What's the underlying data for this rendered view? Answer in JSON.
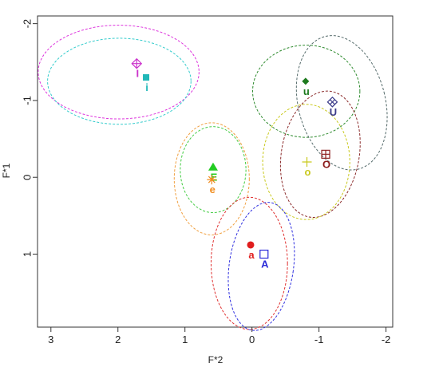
{
  "chart_data": {
    "type": "scatter",
    "title": "",
    "xlabel": "F*2",
    "ylabel": "F*1",
    "xlim": [
      3.2,
      -2.1
    ],
    "ylim": [
      -2.1,
      1.95
    ],
    "x_ticks": [
      3,
      2,
      1,
      0,
      -1,
      -2
    ],
    "y_ticks": [
      -2,
      -1,
      0,
      1
    ],
    "x_tick_labels": [
      "3",
      "2",
      "1",
      "0",
      "-1",
      "-2"
    ],
    "y_tick_labels": [
      "-2",
      "-1",
      "0",
      "1"
    ],
    "grid": false,
    "legend": "none",
    "points": [
      {
        "label": "I",
        "x": 1.72,
        "y": -1.48,
        "color": "#cc33cc",
        "marker": "diamond-plus"
      },
      {
        "label": "i",
        "x": 1.58,
        "y": -1.3,
        "color": "#20b8b8",
        "marker": "square-filled"
      },
      {
        "label": "u",
        "x": -0.8,
        "y": -1.25,
        "color": "#1e7a1e",
        "marker": "diamond-filled"
      },
      {
        "label": "U",
        "x": -1.2,
        "y": -0.98,
        "color": "#3b3b8a",
        "marker": "diamond-x"
      },
      {
        "label": "O",
        "x": -1.1,
        "y": -0.3,
        "color": "#8b1a1a",
        "marker": "square-plus"
      },
      {
        "label": "o",
        "x": -0.82,
        "y": -0.2,
        "color": "#c9c91e",
        "marker": "plus"
      },
      {
        "label": "E",
        "x": 0.58,
        "y": -0.13,
        "color": "#22cc22",
        "marker": "triangle-filled"
      },
      {
        "label": "e",
        "x": 0.6,
        "y": 0.03,
        "color": "#f08c1e",
        "marker": "asterisk"
      },
      {
        "label": "a",
        "x": 0.02,
        "y": 0.88,
        "color": "#e01e1e",
        "marker": "circle-filled"
      },
      {
        "label": "A",
        "x": -0.18,
        "y": 1.0,
        "color": "#2a2ad8",
        "marker": "square-open"
      }
    ],
    "ellipses": [
      {
        "group": "I",
        "cx": 1.99,
        "cy": -1.37,
        "rx": 1.2,
        "ry": 0.61,
        "angle": 0,
        "color": "#dd33dd"
      },
      {
        "group": "i",
        "cx": 1.98,
        "cy": -1.25,
        "rx": 1.07,
        "ry": 0.56,
        "angle": 0,
        "color": "#33cccc"
      },
      {
        "group": "u",
        "cx": -0.81,
        "cy": -1.12,
        "rx": 0.8,
        "ry": 0.6,
        "angle": 0,
        "color": "#2e8b2e"
      },
      {
        "group": "U",
        "cx": -1.34,
        "cy": -0.97,
        "rx": 0.65,
        "ry": 0.89,
        "angle": -14,
        "color": "#556b6b"
      },
      {
        "group": "O",
        "cx": -1.02,
        "cy": -0.3,
        "rx": 0.58,
        "ry": 0.83,
        "angle": 10,
        "color": "#8b2a2a"
      },
      {
        "group": "o",
        "cx": -0.81,
        "cy": -0.2,
        "rx": 0.65,
        "ry": 0.75,
        "angle": 0,
        "color": "#c9c91e"
      },
      {
        "group": "e",
        "cx": 0.6,
        "cy": 0.02,
        "rx": 0.56,
        "ry": 0.73,
        "angle": 0,
        "color": "#f0a040"
      },
      {
        "group": "E",
        "cx": 0.58,
        "cy": -0.1,
        "rx": 0.49,
        "ry": 0.56,
        "angle": 0,
        "color": "#44cc44"
      },
      {
        "group": "a",
        "cx": 0.04,
        "cy": 1.12,
        "rx": 0.57,
        "ry": 0.86,
        "angle": 0,
        "color": "#e03030"
      },
      {
        "group": "A",
        "cx": -0.14,
        "cy": 1.16,
        "rx": 0.48,
        "ry": 0.84,
        "angle": 8,
        "color": "#3030e0"
      }
    ]
  }
}
